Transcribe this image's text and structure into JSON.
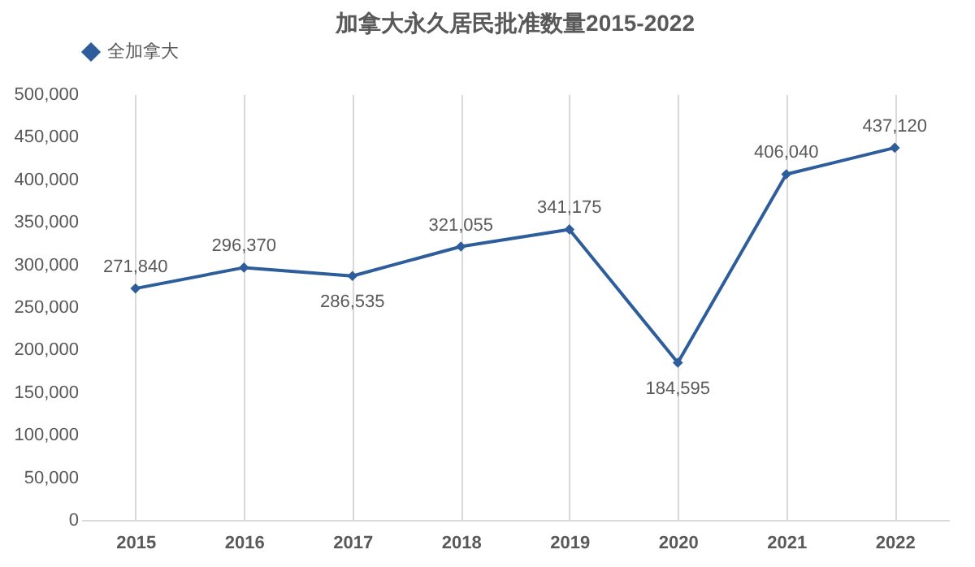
{
  "chart_data": {
    "type": "line",
    "title": "加拿大永久居民批准数量2015-2022",
    "categories": [
      "2015",
      "2016",
      "2017",
      "2018",
      "2019",
      "2020",
      "2021",
      "2022"
    ],
    "series": [
      {
        "name": "全加拿大",
        "color": "#2e5d9b",
        "values": [
          271840,
          296370,
          286535,
          321055,
          341175,
          184595,
          406040,
          437120
        ],
        "value_labels": [
          "271,840",
          "296,370",
          "286,535",
          "321,055",
          "341,175",
          "184,595",
          "406,040",
          "437,120"
        ]
      }
    ],
    "ylim": [
      0,
      500000
    ],
    "yticks": [
      {
        "value": 0,
        "label": "0"
      },
      {
        "value": 50000,
        "label": "50,000"
      },
      {
        "value": 100000,
        "label": "100,000"
      },
      {
        "value": 150000,
        "label": "150,000"
      },
      {
        "value": 200000,
        "label": "200,000"
      },
      {
        "value": 250000,
        "label": "250,000"
      },
      {
        "value": 300000,
        "label": "300,000"
      },
      {
        "value": 350000,
        "label": "350,000"
      },
      {
        "value": 400000,
        "label": "400,000"
      },
      {
        "value": 450000,
        "label": "450,000"
      },
      {
        "value": 500000,
        "label": "500,000"
      }
    ],
    "grid": "x",
    "legend": "top",
    "marker": "diamond",
    "line_style": "solid"
  }
}
